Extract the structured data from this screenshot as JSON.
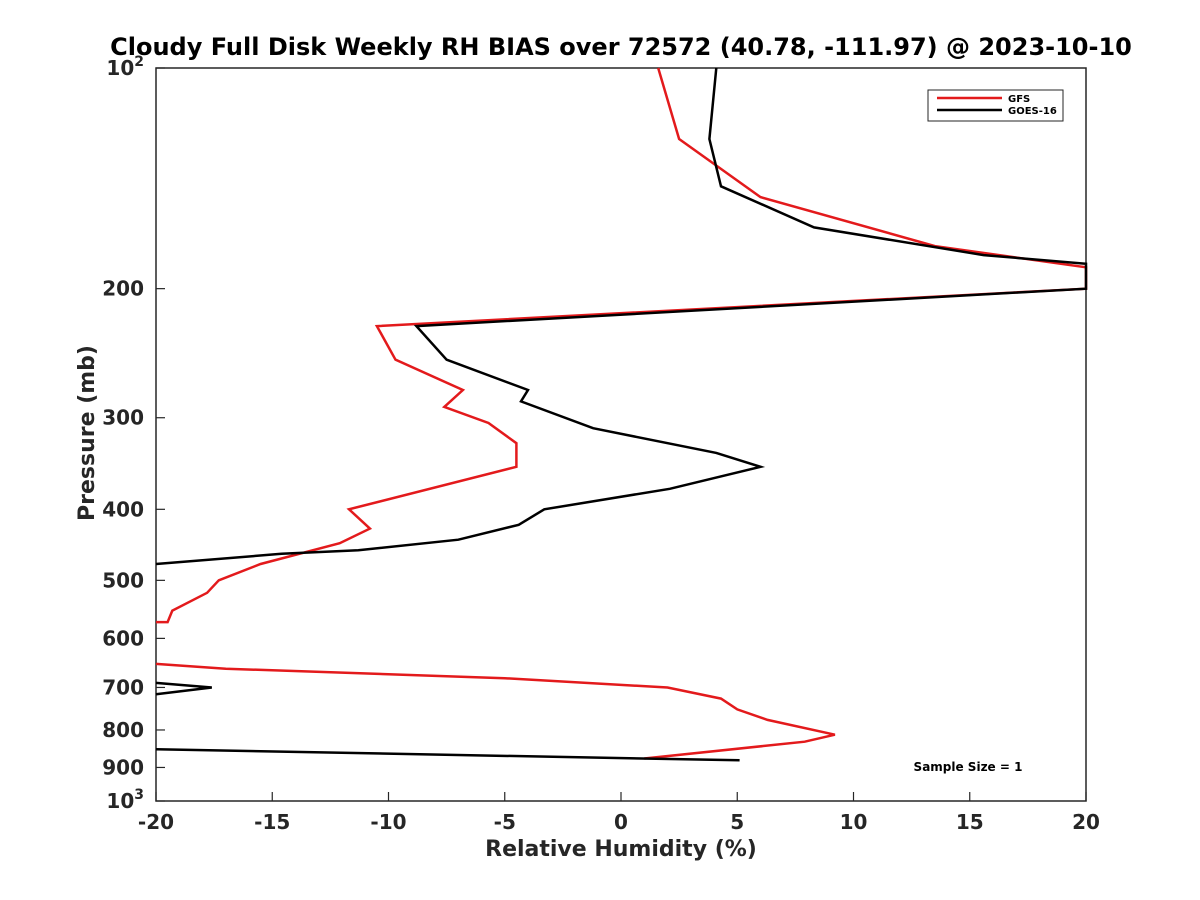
{
  "chart_data": {
    "type": "line",
    "title": "Cloudy Full Disk Weekly RH BIAS over 72572 (40.78, -111.97) @ 2023-10-10",
    "xlabel": "Relative Humidity (%)",
    "ylabel": "Pressure (mb)",
    "xlim": [
      -20,
      20
    ],
    "ylim": [
      100,
      1000
    ],
    "yscale": "log",
    "y_reversed": true,
    "grid": false,
    "legend_position": "top-right",
    "x_ticks": [
      "-20",
      "-15",
      "-10",
      "-5",
      "0",
      "5",
      "10",
      "15",
      "20"
    ],
    "x_tick_values": [
      -20,
      -15,
      -10,
      -5,
      0,
      5,
      10,
      15,
      20
    ],
    "y_ticks": [
      {
        "value": 100,
        "base": "10",
        "exp": "2"
      },
      {
        "value": 200,
        "label": "200"
      },
      {
        "value": 300,
        "label": "300"
      },
      {
        "value": 400,
        "label": "400"
      },
      {
        "value": 500,
        "label": "500"
      },
      {
        "value": 600,
        "label": "600"
      },
      {
        "value": 700,
        "label": "700"
      },
      {
        "value": 800,
        "label": "800"
      },
      {
        "value": 900,
        "label": "900"
      },
      {
        "value": 1000,
        "base": "10",
        "exp": "3"
      }
    ],
    "series": [
      {
        "name": "GFS",
        "color": "#e31a1c",
        "segments": [
          [
            [
              1.6,
              100
            ],
            [
              2.5,
              125
            ],
            [
              6.0,
              150
            ],
            [
              13.5,
              175
            ],
            [
              20.0,
              187
            ],
            [
              20.0,
              200
            ],
            [
              -10.5,
              225
            ],
            [
              -9.7,
              250
            ],
            [
              -6.8,
              275
            ],
            [
              -7.6,
              290
            ],
            [
              -5.7,
              305
            ],
            [
              -4.5,
              325
            ],
            [
              -4.5,
              350
            ],
            [
              -11.7,
              400
            ],
            [
              -10.8,
              425
            ],
            [
              -12.1,
              445
            ],
            [
              -15.5,
              475
            ],
            [
              -17.3,
              500
            ],
            [
              -17.8,
              520
            ],
            [
              -19.3,
              550
            ],
            [
              -19.5,
              570
            ],
            [
              -20.0,
              570
            ]
          ],
          [
            [
              -20.0,
              650
            ],
            [
              -17.0,
              660
            ],
            [
              -5.0,
              680
            ],
            [
              2.0,
              700
            ],
            [
              4.3,
              725
            ],
            [
              5.0,
              750
            ],
            [
              6.3,
              775
            ],
            [
              9.2,
              812
            ],
            [
              7.9,
              830
            ],
            [
              1.0,
              875
            ]
          ]
        ]
      },
      {
        "name": "GOES-16",
        "color": "#000000",
        "segments": [
          [
            [
              4.1,
              100
            ],
            [
              3.8,
              125
            ],
            [
              4.3,
              145
            ],
            [
              8.3,
              165
            ],
            [
              15.6,
              180
            ],
            [
              20.0,
              185
            ],
            [
              20.0,
              200
            ],
            [
              -8.8,
              225
            ],
            [
              -7.5,
              250
            ],
            [
              -4.0,
              275
            ],
            [
              -4.3,
              285
            ],
            [
              -1.2,
              310
            ],
            [
              4.1,
              335
            ],
            [
              6.0,
              350
            ],
            [
              2.1,
              375
            ],
            [
              -3.3,
              400
            ],
            [
              -4.4,
              420
            ],
            [
              -7.0,
              440
            ],
            [
              -11.3,
              455
            ],
            [
              -14.6,
              460
            ],
            [
              -20.0,
              475
            ]
          ],
          [
            [
              -20.0,
              690
            ],
            [
              -17.6,
              700
            ],
            [
              -20.0,
              715
            ]
          ],
          [
            [
              -20.0,
              850
            ],
            [
              5.1,
              880
            ]
          ]
        ]
      }
    ],
    "annotations": [
      "Sample Size = 1"
    ]
  }
}
